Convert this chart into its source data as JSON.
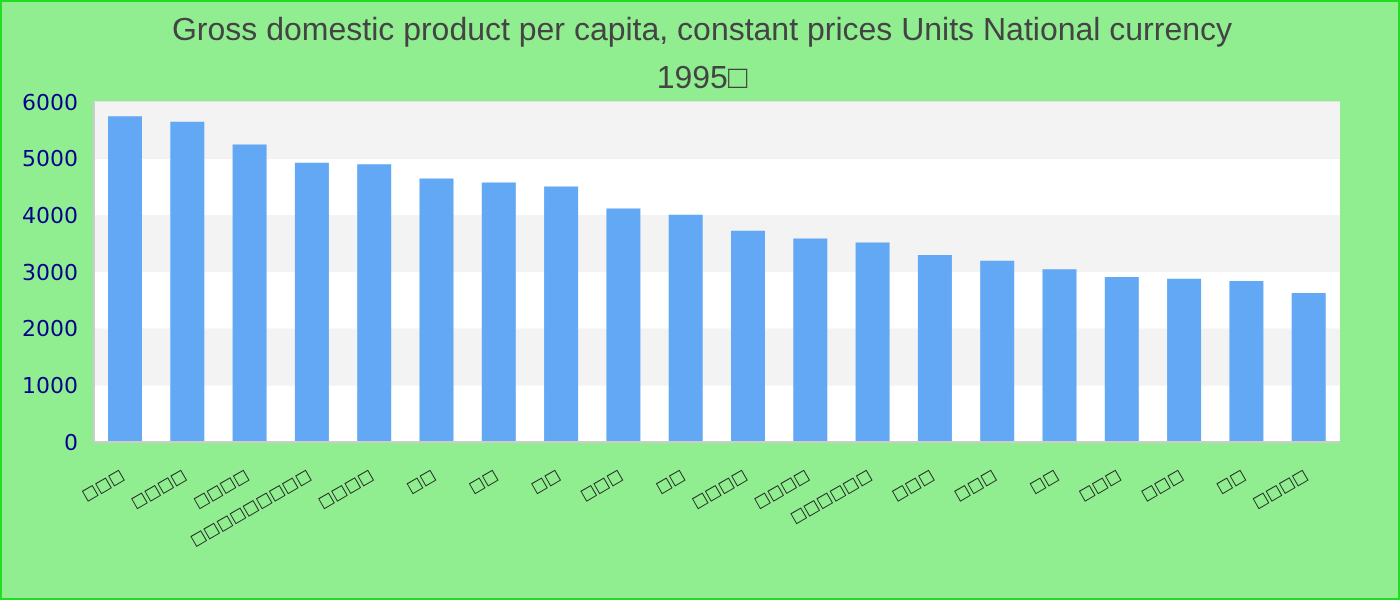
{
  "chart_data": {
    "type": "bar",
    "title": "Gross domestic product per capita, constant prices Units National currency 1995□",
    "categories": [
      "□□□",
      "□□□□",
      "□□□□",
      "□□□□□□□□□",
      "□□□□",
      "□□",
      "□□",
      "□□",
      "□□□",
      "□□",
      "□□□□",
      "□□□□",
      "□□□□□□",
      "□□□",
      "□□□",
      "□□",
      "□□□",
      "□□□",
      "□□",
      "□□□□"
    ],
    "values": [
      5750,
      5650,
      5250,
      4930,
      4900,
      4650,
      4580,
      4510,
      4120,
      4010,
      3730,
      3590,
      3520,
      3300,
      3200,
      3050,
      2910,
      2880,
      2840,
      2630
    ],
    "color": "#62a8f4",
    "ylim": [
      0,
      6000
    ],
    "yticks": [
      0,
      1000,
      2000,
      3000,
      4000,
      5000,
      6000
    ],
    "grid": "y"
  }
}
